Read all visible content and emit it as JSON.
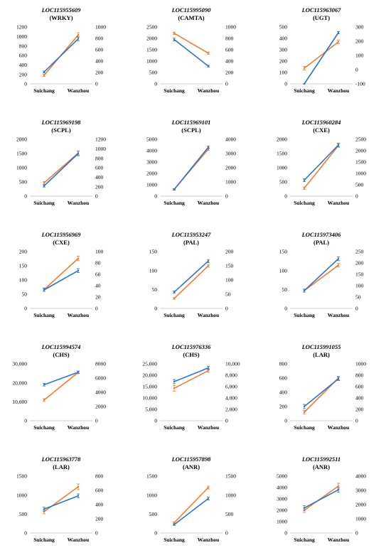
{
  "colors": {
    "blue": "#2e75c9",
    "orange": "#ed7d31"
  },
  "chart_data": [
    {
      "type": "line",
      "title": "LOC115955609",
      "subtitle": "(WRKY)",
      "categories": [
        "Suichang",
        "Wanzhou"
      ],
      "ylim": [
        0,
        1200
      ],
      "yticks": [
        0,
        200,
        400,
        600,
        800,
        1000,
        1200
      ],
      "y2lim": [
        0,
        1000
      ],
      "y2ticks": [
        0,
        200,
        400,
        600,
        800,
        1000
      ],
      "series": [
        {
          "axis": "left",
          "color": "blue",
          "values": [
            250,
            950
          ],
          "errors": [
            20,
            40
          ]
        },
        {
          "axis": "right",
          "color": "orange",
          "values": [
            150,
            860
          ],
          "errors": [
            20,
            40
          ]
        }
      ]
    },
    {
      "type": "line",
      "title": "LOC115995090",
      "subtitle": "(CAMTA)",
      "categories": [
        "Suichang",
        "Wanzhou"
      ],
      "ylim": [
        0,
        2500
      ],
      "yticks": [
        0,
        500,
        1000,
        1500,
        2000,
        2500
      ],
      "y2lim": [
        0,
        1000
      ],
      "y2ticks": [
        0,
        200,
        400,
        600,
        800,
        1000
      ],
      "series": [
        {
          "axis": "left",
          "color": "blue",
          "values": [
            1950,
            780
          ],
          "errors": [
            60,
            40
          ]
        },
        {
          "axis": "right",
          "color": "orange",
          "values": [
            890,
            540
          ],
          "errors": [
            20,
            20
          ]
        }
      ]
    },
    {
      "type": "line",
      "title": "LOC115963067",
      "subtitle": "(UGT)",
      "categories": [
        "Suichang",
        "Wanzhou"
      ],
      "ylim": [
        0,
        500
      ],
      "yticks": [
        0,
        100,
        200,
        300,
        400,
        500
      ],
      "y2lim": [
        -100,
        300
      ],
      "y2ticks": [
        -100,
        0,
        100,
        200,
        300
      ],
      "series": [
        {
          "axis": "left",
          "color": "blue",
          "values": [
            0,
            450
          ],
          "errors": [
            0,
            10
          ]
        },
        {
          "axis": "right",
          "color": "orange",
          "values": [
            10,
            195
          ],
          "errors": [
            12,
            12
          ]
        }
      ]
    },
    {
      "type": "line",
      "title": "LOC115969198",
      "subtitle": "(SCPL)",
      "categories": [
        "Suichang",
        "Wanzhou"
      ],
      "ylim": [
        0,
        2000
      ],
      "yticks": [
        0,
        500,
        1000,
        1500,
        2000
      ],
      "y2lim": [
        0,
        1200
      ],
      "y2ticks": [
        0,
        200,
        400,
        600,
        800,
        1000,
        1200
      ],
      "series": [
        {
          "axis": "left",
          "color": "blue",
          "values": [
            360,
            1500
          ],
          "errors": [
            40,
            80
          ]
        },
        {
          "axis": "right",
          "color": "orange",
          "values": [
            280,
            910
          ],
          "errors": [
            30,
            40
          ]
        }
      ]
    },
    {
      "type": "line",
      "title": "LOC115969101",
      "subtitle": "(SCPL)",
      "categories": [
        "Suichang",
        "Wanzhou"
      ],
      "ylim": [
        0,
        5000
      ],
      "yticks": [
        0,
        1000,
        2000,
        3000,
        4000,
        5000
      ],
      "y2lim": [
        0,
        4000
      ],
      "y2ticks": [
        0,
        1000,
        2000,
        3000,
        4000
      ],
      "series": [
        {
          "axis": "left",
          "color": "blue",
          "values": [
            580,
            4300
          ],
          "errors": [
            60,
            100
          ]
        },
        {
          "axis": "right",
          "color": "orange",
          "values": [
            480,
            3300
          ],
          "errors": [
            50,
            80
          ]
        }
      ]
    },
    {
      "type": "line",
      "title": "LOC115960284",
      "subtitle": "(CXE)",
      "categories": [
        "Suichang",
        "Wanzhou"
      ],
      "ylim": [
        0,
        2000
      ],
      "yticks": [
        0,
        500,
        1000,
        1500,
        2000
      ],
      "y2lim": [
        0,
        2500
      ],
      "y2ticks": [
        0,
        500,
        1000,
        1500,
        2000,
        2500
      ],
      "series": [
        {
          "axis": "left",
          "color": "blue",
          "values": [
            560,
            1800
          ],
          "errors": [
            50,
            60
          ]
        },
        {
          "axis": "right",
          "color": "orange",
          "values": [
            350,
            2220
          ],
          "errors": [
            50,
            70
          ]
        }
      ]
    },
    {
      "type": "line",
      "title": "LOC115956969",
      "subtitle": "(CXE)",
      "categories": [
        "Suichang",
        "Wanzhou"
      ],
      "ylim": [
        0,
        200
      ],
      "yticks": [
        0,
        50,
        100,
        150,
        200
      ],
      "y2lim": [
        0,
        100
      ],
      "y2ticks": [
        0,
        20,
        40,
        60,
        80,
        100
      ],
      "series": [
        {
          "axis": "left",
          "color": "blue",
          "values": [
            65,
            133
          ],
          "errors": [
            5,
            7
          ]
        },
        {
          "axis": "right",
          "color": "orange",
          "values": [
            33,
            88
          ],
          "errors": [
            3,
            4
          ]
        }
      ]
    },
    {
      "type": "line",
      "title": "LOC115953247",
      "subtitle": "(PAL)",
      "categories": [
        "Suichang",
        "Wanzhou"
      ],
      "ylim": [
        0,
        150
      ],
      "yticks": [
        0,
        50,
        100,
        150
      ],
      "y2lim": [
        0,
        200
      ],
      "y2ticks": [
        0,
        50,
        100,
        150,
        200
      ],
      "series": [
        {
          "axis": "left",
          "color": "blue",
          "values": [
            43,
            125
          ],
          "errors": [
            3,
            4
          ]
        },
        {
          "axis": "right",
          "color": "orange",
          "values": [
            35,
            150
          ],
          "errors": [
            3,
            5
          ]
        }
      ]
    },
    {
      "type": "line",
      "title": "LOC115973406",
      "subtitle": "(PAL)",
      "categories": [
        "Suichang",
        "Wanzhou"
      ],
      "ylim": [
        0,
        150
      ],
      "yticks": [
        0,
        50,
        100,
        150
      ],
      "y2lim": [
        0,
        250
      ],
      "y2ticks": [
        0,
        50,
        100,
        150,
        200,
        250
      ],
      "series": [
        {
          "axis": "left",
          "color": "blue",
          "values": [
            47,
            131
          ],
          "errors": [
            4,
            5
          ]
        },
        {
          "axis": "right",
          "color": "orange",
          "values": [
            78,
            190
          ],
          "errors": [
            6,
            8
          ]
        }
      ]
    },
    {
      "type": "line",
      "title": "LOC115994574",
      "subtitle": "(CHS)",
      "categories": [
        "Suichang",
        "Wanzhou"
      ],
      "ylim": [
        0,
        30000
      ],
      "yticks": [
        0,
        10000,
        20000,
        30000
      ],
      "yticklabels": [
        "0",
        "10,000",
        "20,000",
        "30,000"
      ],
      "y2lim": [
        0,
        8000
      ],
      "y2ticks": [
        0,
        2000,
        4000,
        6000,
        8000
      ],
      "series": [
        {
          "axis": "left",
          "color": "blue",
          "values": [
            19000,
            25600
          ],
          "errors": [
            700,
            500
          ]
        },
        {
          "axis": "right",
          "color": "orange",
          "values": [
            2900,
            6800
          ],
          "errors": [
            200,
            200
          ]
        }
      ]
    },
    {
      "type": "line",
      "title": "LOC115976336",
      "subtitle": "(CHS)",
      "categories": [
        "Suichang",
        "Wanzhou"
      ],
      "ylim": [
        0,
        25000
      ],
      "yticks": [
        0,
        5000,
        10000,
        15000,
        20000,
        25000
      ],
      "yticklabels": [
        "0",
        "5,000",
        "10,000",
        "15,000",
        "20,000",
        "25,000"
      ],
      "y2lim": [
        0,
        10000
      ],
      "y2ticks": [
        0,
        2000,
        4000,
        6000,
        8000,
        10000
      ],
      "y2ticklabels": [
        "0",
        "2,000",
        "4,000",
        "6,000",
        "8,000",
        "10,000"
      ],
      "series": [
        {
          "axis": "left",
          "color": "blue",
          "values": [
            17200,
            23200
          ],
          "errors": [
            900,
            700
          ]
        },
        {
          "axis": "right",
          "color": "orange",
          "values": [
            5700,
            8800
          ],
          "errors": [
            500,
            300
          ]
        }
      ]
    },
    {
      "type": "line",
      "title": "LOC115991055",
      "subtitle": "(LAR)",
      "categories": [
        "Suichang",
        "Wanzhou"
      ],
      "ylim": [
        0,
        800
      ],
      "yticks": [
        0,
        200,
        400,
        600,
        800
      ],
      "y2lim": [
        0,
        1000
      ],
      "y2ticks": [
        0,
        200,
        400,
        600,
        800,
        1000
      ],
      "series": [
        {
          "axis": "left",
          "color": "blue",
          "values": [
            200,
            590
          ],
          "errors": [
            30,
            25
          ]
        },
        {
          "axis": "right",
          "color": "orange",
          "values": [
            150,
            750
          ],
          "errors": [
            30,
            30
          ]
        }
      ]
    },
    {
      "type": "line",
      "title": "LOC115963778",
      "subtitle": "(LAR)",
      "categories": [
        "Suichang",
        "Wanzhou"
      ],
      "ylim": [
        0,
        1500
      ],
      "yticks": [
        0,
        500,
        1000,
        1500
      ],
      "y2lim": [
        0,
        800
      ],
      "y2ticks": [
        0,
        200,
        400,
        600,
        800
      ],
      "series": [
        {
          "axis": "left",
          "color": "blue",
          "values": [
            630,
            980
          ],
          "errors": [
            50,
            50
          ]
        },
        {
          "axis": "right",
          "color": "orange",
          "values": [
            300,
            650
          ],
          "errors": [
            30,
            40
          ]
        }
      ]
    },
    {
      "type": "line",
      "title": "LOC115957898",
      "subtitle": "(ANR)",
      "categories": [
        "Suichang",
        "Wanzhou"
      ],
      "ylim": [
        0,
        1500
      ],
      "yticks": [
        0,
        500,
        1000,
        1500
      ],
      "y2lim": [
        0,
        1500
      ],
      "y2ticks": [
        0,
        500,
        1000,
        1500
      ],
      "series": [
        {
          "axis": "left",
          "color": "blue",
          "values": [
            220,
            910
          ],
          "errors": [
            20,
            40
          ]
        },
        {
          "axis": "right",
          "color": "orange",
          "values": [
            270,
            1200
          ],
          "errors": [
            20,
            40
          ]
        }
      ]
    },
    {
      "type": "line",
      "title": "LOC115992511",
      "subtitle": "(ANR)",
      "categories": [
        "Suichang",
        "Wanzhou"
      ],
      "ylim": [
        0,
        5000
      ],
      "yticks": [
        0,
        1000,
        2000,
        3000,
        4000,
        5000
      ],
      "y2lim": [
        0,
        4000
      ],
      "y2ticks": [
        0,
        1000,
        2000,
        3000,
        4000
      ],
      "series": [
        {
          "axis": "left",
          "color": "blue",
          "values": [
            2200,
            3800
          ],
          "errors": [
            200,
            200
          ]
        },
        {
          "axis": "right",
          "color": "orange",
          "values": [
            1600,
            3300
          ],
          "errors": [
            150,
            200
          ]
        }
      ]
    }
  ]
}
